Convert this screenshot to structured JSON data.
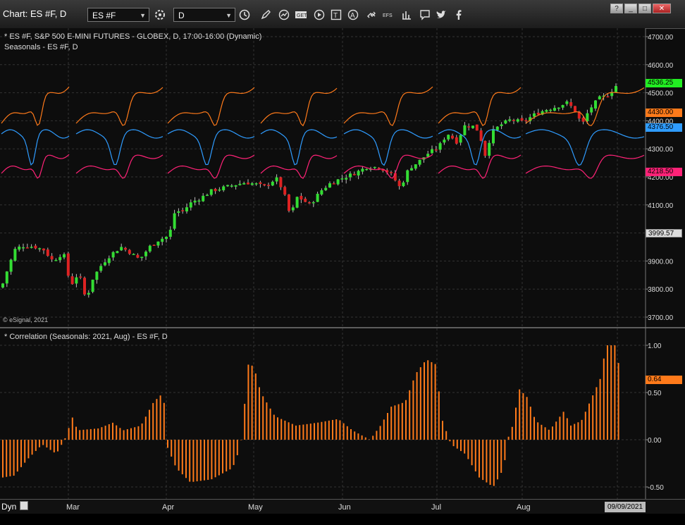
{
  "window": {
    "title": "Chart: ES #F, D",
    "symbol_value": "ES #F",
    "interval_value": "D",
    "help_label": "?",
    "min_label": "_",
    "max_label": "□",
    "close_label": "✕"
  },
  "toolbar_icons": [
    "settings-icon",
    "clock-icon",
    "pencil-icon",
    "draw-curve-icon",
    "get-icon",
    "play-icon",
    "text-icon",
    "alert-icon",
    "link-icon",
    "efs-icon",
    "chart-type-icon",
    "comment-icon",
    "twitter-icon",
    "facebook-icon"
  ],
  "price_pane": {
    "legend_line1": "* ES #F, S&P 500 E-MINI FUTURES - GLOBEX, D, 17:00-16:00 (Dynamic)",
    "legend_line2": "Seasonals - ES #F, D",
    "watermark": "© eSignal, 2021",
    "ticks": [
      "4700.00",
      "4600.00",
      "4500.00",
      "4400.00",
      "4300.00",
      "4200.00",
      "4100.00",
      "3999.57",
      "3900.00",
      "3800.00",
      "3700.00"
    ],
    "tick_values": [
      4700,
      4600,
      4500,
      4400,
      4300,
      4200,
      4100,
      3999.57,
      3900,
      3800,
      3700
    ],
    "last_price": "4536.25",
    "seasonal_orange": "4430.00",
    "seasonal_blue": "4376.50",
    "seasonal_pink": "4218.50",
    "current_price_box": "3999.57"
  },
  "correlation_pane": {
    "legend": "* Correlation (Seasonals: 2021, Aug) - ES #F, D",
    "ticks": [
      "1.00",
      "0.50",
      "0.00",
      "-0.50"
    ],
    "tick_values": [
      1,
      0.5,
      0,
      -0.5
    ],
    "last_value": "0.64"
  },
  "time_axis": {
    "dyn_label": "Dyn",
    "months": [
      "Mar",
      "Apr",
      "May",
      "Jun",
      "Jul",
      "Aug"
    ],
    "date_box": "09/09/2021"
  },
  "colors": {
    "up": "#33dd33",
    "down": "#dd2222",
    "orange": "#ff7a1a",
    "blue": "#2f9cff",
    "pink": "#ff2277",
    "bar": "#ff7a1a"
  }
}
